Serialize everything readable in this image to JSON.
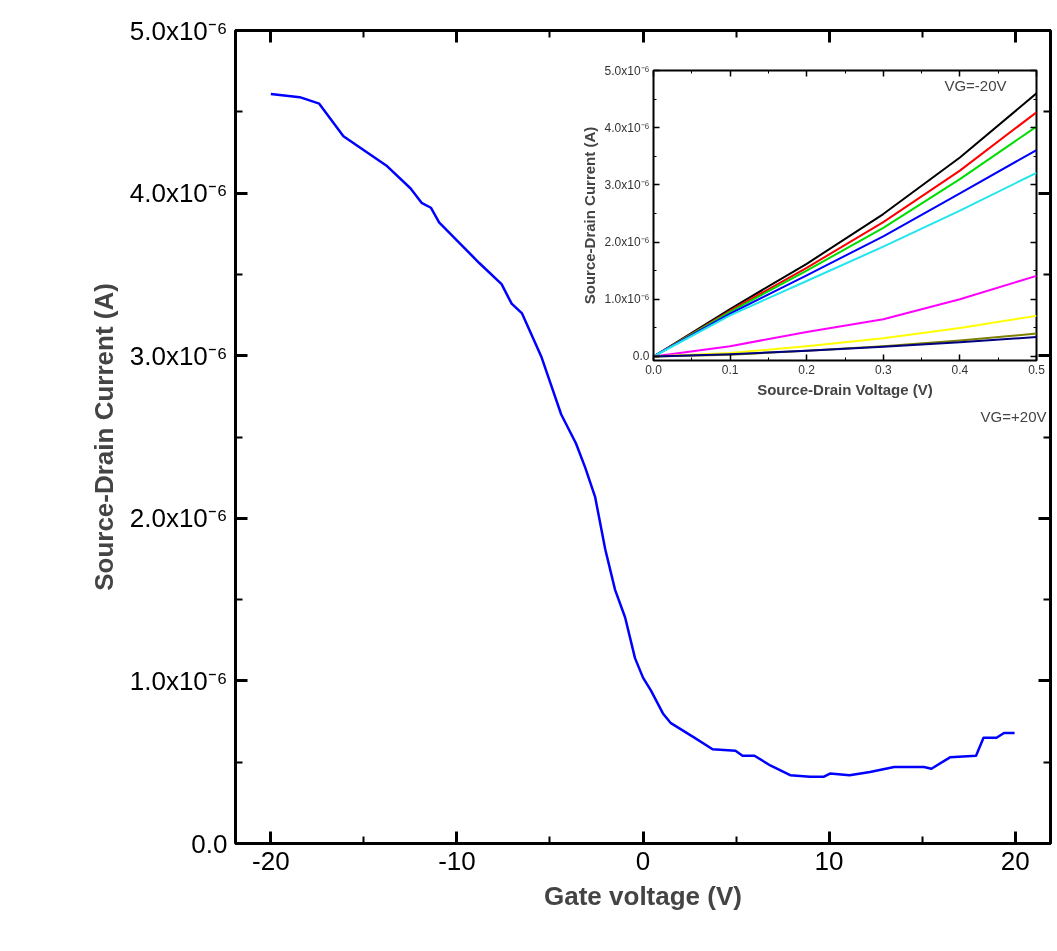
{
  "chart_data": [
    {
      "type": "line",
      "xlabel": "Gate voltage (V)",
      "ylabel": "Source-Drain Current (A)",
      "x": [
        -20,
        -18.45,
        -17.4,
        -16.1,
        -13.8,
        -12.5,
        -11.9,
        -11.4,
        -10.96,
        -8.8,
        -7.6,
        -7.06,
        -6.5,
        -5.45,
        -4.97,
        -4.4,
        -3.6,
        -3.1,
        -2.57,
        -2.03,
        -1.5,
        -0.96,
        -0.43,
        0,
        0.43,
        1.07,
        1.5,
        2.78,
        3.74,
        4.97,
        5.35,
        5.99,
        6.84,
        7.91,
        8.98,
        9.7,
        10.05,
        11.1,
        12.2,
        13.5,
        15.1,
        15.5,
        16.5,
        17.9,
        18.3,
        19.0,
        19.4,
        19.97
      ],
      "series": [
        {
          "color": "#0000ff",
          "values": [
            4.61e-06,
            4.59e-06,
            4.55e-06,
            4.35e-06,
            4.17e-06,
            4.03e-06,
            3.94e-06,
            3.91e-06,
            3.82e-06,
            3.57e-06,
            3.44e-06,
            3.32e-06,
            3.26e-06,
            2.99e-06,
            2.83e-06,
            2.64e-06,
            2.46e-06,
            2.31e-06,
            2.13e-06,
            1.81e-06,
            1.56e-06,
            1.39e-06,
            1.14e-06,
            1.02e-06,
            9.4e-07,
            8e-07,
            7.4e-07,
            6.5e-07,
            5.8e-07,
            5.7e-07,
            5.4e-07,
            5.4e-07,
            4.8e-07,
            4.2e-07,
            4.1e-07,
            4.1e-07,
            4.3e-07,
            4.2e-07,
            4.4e-07,
            4.7e-07,
            4.7e-07,
            4.6e-07,
            5.3e-07,
            5.4e-07,
            6.5e-07,
            6.5e-07,
            6.8e-07,
            6.8e-07
          ]
        }
      ],
      "xlim": [
        -21.9,
        21.9
      ],
      "ylim": [
        0,
        5e-06
      ],
      "xticks": [
        -20,
        {
          "value": -15,
          "label": null
        },
        -10,
        {
          "value": -5,
          "label": null
        },
        0,
        {
          "value": 5,
          "label": null
        },
        10,
        {
          "value": 15,
          "label": null
        },
        20
      ],
      "yticks": [
        {
          "value": 0,
          "label": "0.0"
        },
        {
          "value": 5e-07,
          "label": null
        },
        {
          "value": 1e-06,
          "label": "1.0x10⁻⁶"
        },
        {
          "value": 1.5e-06,
          "label": null
        },
        {
          "value": 2e-06,
          "label": "2.0x10⁻⁶"
        },
        {
          "value": 2.5e-06,
          "label": null
        },
        {
          "value": 3e-06,
          "label": "3.0x10⁻⁶"
        },
        {
          "value": 3.5e-06,
          "label": null
        },
        {
          "value": 4e-06,
          "label": "4.0x10⁻⁶"
        },
        {
          "value": 4.5e-06,
          "label": null
        },
        {
          "value": 5e-06,
          "label": "5.0x10⁻⁶"
        }
      ]
    },
    {
      "type": "line",
      "xlabel": "Source-Drain Voltage (V)",
      "ylabel": "Source-Drain Current (A)",
      "x": [
        0,
        0.1,
        0.2,
        0.3,
        0.4,
        0.5
      ],
      "series": [
        {
          "color": "#000000",
          "values": [
            0,
            8.3e-07,
            1.62e-06,
            2.49e-06,
            3.48e-06,
            4.6e-06
          ]
        },
        {
          "color": "#ff0000",
          "values": [
            0,
            8e-07,
            1.55e-06,
            2.35e-06,
            3.25e-06,
            4.27e-06
          ]
        },
        {
          "color": "#00dd00",
          "values": [
            0,
            7.8e-07,
            1.5e-06,
            2.25e-06,
            3.1e-06,
            4.02e-06
          ]
        },
        {
          "color": "#0000ff",
          "values": [
            0,
            7.5e-07,
            1.42e-06,
            2.1e-06,
            2.85e-06,
            3.61e-06
          ]
        },
        {
          "color": "#22e5ee",
          "values": [
            0,
            7.2e-07,
            1.32e-06,
            1.92e-06,
            2.55e-06,
            3.21e-06
          ]
        },
        {
          "color": "#ff00ff",
          "values": [
            0,
            1.8e-07,
            4.3e-07,
            6.5e-07,
            1e-06,
            1.41e-06
          ]
        },
        {
          "color": "#ffff00",
          "values": [
            0,
            6e-08,
            1.8e-07,
            3.2e-07,
            5e-07,
            7.1e-07
          ]
        },
        {
          "color": "#808000",
          "values": [
            0,
            3e-08,
            1e-07,
            1.8e-07,
            2.8e-07,
            4e-07
          ]
        },
        {
          "color": "#000080",
          "values": [
            0,
            4e-08,
            1e-07,
            1.7e-07,
            2.5e-07,
            3.4e-07
          ]
        }
      ],
      "xlim": [
        0,
        0.5
      ],
      "ylim": [
        -7e-08,
        5e-06
      ],
      "xticks": [
        {
          "value": 0,
          "label": "0.0"
        },
        {
          "value": 0.05,
          "label": null
        },
        0.1,
        {
          "value": 0.15,
          "label": null
        },
        0.2,
        {
          "value": 0.25,
          "label": null
        },
        0.3,
        {
          "value": 0.35,
          "label": null
        },
        0.4,
        {
          "value": 0.45,
          "label": null
        },
        0.5
      ],
      "yticks": [
        {
          "value": 0,
          "label": "0.0"
        },
        {
          "value": 5e-07,
          "label": null
        },
        {
          "value": 1e-06,
          "label": "1.0x10⁻⁶"
        },
        {
          "value": 1.5e-06,
          "label": null
        },
        {
          "value": 2e-06,
          "label": "2.0x10⁻⁶"
        },
        {
          "value": 2.5e-06,
          "label": null
        },
        {
          "value": 3e-06,
          "label": "3.0x10⁻⁶"
        },
        {
          "value": 3.5e-06,
          "label": null
        },
        {
          "value": 4e-06,
          "label": "4.0x10⁻⁶"
        },
        {
          "value": 4.5e-06,
          "label": null
        },
        {
          "value": 5e-06,
          "label": "5.0x10⁻⁶"
        }
      ],
      "annotations": [
        "VG=-20V",
        "VG=+20V"
      ]
    }
  ]
}
